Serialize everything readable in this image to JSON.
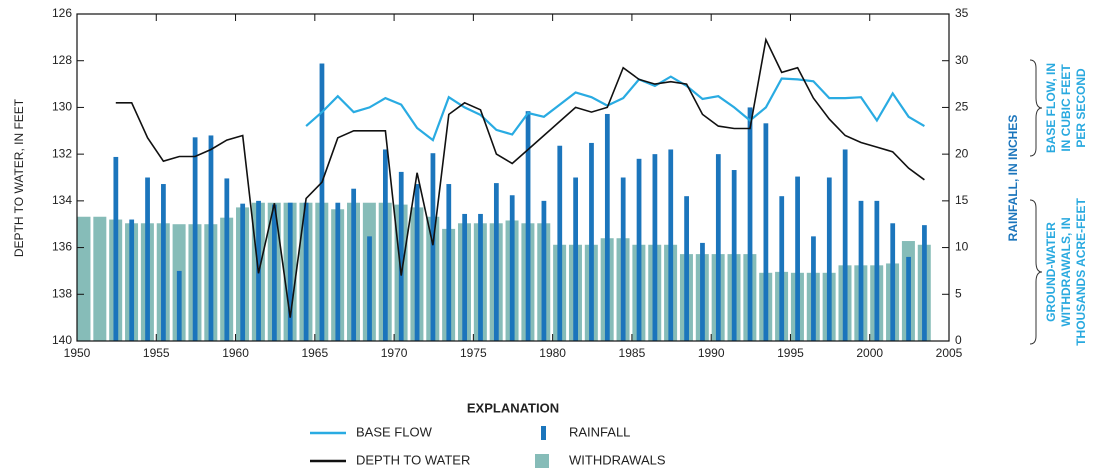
{
  "chart_data": {
    "type": "combo",
    "x": [
      1950,
      1951,
      1952,
      1953,
      1954,
      1955,
      1956,
      1957,
      1958,
      1959,
      1960,
      1961,
      1962,
      1963,
      1964,
      1965,
      1966,
      1967,
      1968,
      1969,
      1970,
      1971,
      1972,
      1973,
      1974,
      1975,
      1976,
      1977,
      1978,
      1979,
      1980,
      1981,
      1982,
      1983,
      1984,
      1985,
      1986,
      1987,
      1988,
      1989,
      1990,
      1991,
      1992,
      1993,
      1994,
      1995,
      1996,
      1997,
      1998,
      1999,
      2000,
      2001,
      2002,
      2003
    ],
    "xlim": [
      1950,
      2005
    ],
    "xticks": [
      1950,
      1955,
      1960,
      1965,
      1970,
      1975,
      1980,
      1985,
      1990,
      1995,
      2000,
      2005
    ],
    "ylim": [
      140,
      126
    ],
    "yticks": [
      126,
      128,
      130,
      132,
      134,
      136,
      138,
      140
    ],
    "y2lim": [
      0,
      35
    ],
    "y2ticks": [
      0,
      5,
      10,
      15,
      20,
      25,
      30,
      35
    ],
    "ylabel": "DEPTH TO WATER, IN FEET",
    "y2label": "RAINFALL, IN INCHES",
    "y2label_baseflow": [
      "BASE FLOW, IN",
      "IN CUBIC FEET",
      "PER SECOND"
    ],
    "y2label_withdrawals": [
      "GROUND-WATER",
      "WITHDRAWALS, IN",
      "THOUSANDS ACRE-FEET"
    ],
    "legend_title": "EXPLANATION",
    "series": [
      {
        "name": "BASE FLOW",
        "type": "line",
        "axis": "y2",
        "color": "#29abe2",
        "values": [
          null,
          null,
          null,
          null,
          null,
          null,
          null,
          null,
          null,
          null,
          null,
          null,
          null,
          null,
          23.0,
          24.5,
          26.2,
          24.5,
          25.0,
          26.0,
          25.3,
          22.8,
          21.5,
          26.1,
          25.0,
          24.2,
          22.6,
          22.1,
          24.4,
          24.0,
          25.3,
          26.6,
          26.1,
          25.2,
          26.0,
          28.0,
          27.3,
          28.3,
          27.3,
          25.9,
          26.2,
          25.0,
          23.6,
          25.0,
          28.1,
          28.0,
          27.8,
          26.0,
          26.0,
          26.1,
          23.6,
          26.5,
          24.0,
          23.0
        ]
      },
      {
        "name": "DEPTH TO WATER",
        "type": "line",
        "axis": "y",
        "color": "#111111",
        "values": [
          null,
          null,
          129.8,
          129.8,
          131.3,
          132.3,
          132.1,
          132.1,
          131.8,
          131.4,
          131.2,
          137.1,
          134.1,
          139.0,
          133.9,
          133.2,
          131.3,
          131.0,
          131.0,
          131.0,
          137.2,
          132.8,
          135.9,
          130.3,
          129.8,
          130.1,
          132.0,
          132.4,
          131.8,
          131.2,
          130.6,
          130.0,
          130.2,
          130.0,
          128.3,
          128.8,
          129.0,
          128.9,
          129.0,
          130.3,
          130.8,
          130.9,
          130.9,
          127.1,
          128.5,
          128.3,
          129.6,
          130.5,
          131.2,
          131.5,
          131.7,
          131.9,
          132.6,
          133.1
        ]
      },
      {
        "name": "RAINFALL",
        "type": "bar",
        "axis": "y2",
        "color": "#1b75bc",
        "values": [
          null,
          null,
          19.7,
          13.0,
          17.5,
          16.8,
          7.5,
          21.8,
          22.0,
          17.4,
          14.7,
          15.0,
          14.6,
          14.8,
          14.8,
          29.7,
          14.8,
          16.3,
          11.2,
          20.5,
          18.1,
          16.8,
          20.1,
          16.8,
          13.6,
          13.6,
          16.9,
          15.6,
          24.6,
          15.0,
          20.9,
          17.5,
          21.2,
          24.3,
          17.5,
          19.5,
          20.0,
          20.5,
          15.5,
          10.5,
          20.0,
          18.3,
          25.0,
          23.3,
          15.5,
          17.6,
          11.2,
          17.5,
          20.5,
          15.0,
          15.0,
          12.6,
          9.0,
          12.4
        ]
      },
      {
        "name": "WITHDRAWALS",
        "type": "bar",
        "axis": "y2",
        "color": "#86bcb8",
        "values": [
          13.3,
          13.3,
          13.0,
          12.6,
          12.6,
          12.6,
          12.5,
          12.5,
          12.5,
          13.2,
          14.3,
          14.8,
          14.8,
          14.8,
          14.8,
          14.8,
          14.1,
          14.8,
          14.8,
          14.8,
          14.6,
          14.3,
          13.3,
          12.0,
          12.6,
          12.6,
          12.6,
          12.9,
          12.6,
          12.6,
          10.3,
          10.3,
          10.3,
          11.0,
          11.0,
          10.3,
          10.3,
          10.3,
          9.3,
          9.3,
          9.3,
          9.3,
          9.3,
          7.3,
          7.4,
          7.3,
          7.3,
          7.3,
          8.1,
          8.1,
          8.1,
          8.3,
          10.7,
          10.3
        ]
      }
    ]
  }
}
